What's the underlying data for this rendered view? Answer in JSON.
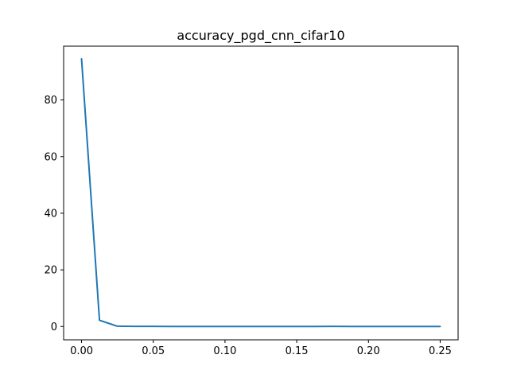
{
  "chart_data": {
    "type": "line",
    "title": "accuracy_pgd_cnn_cifar10",
    "xlabel": "",
    "ylabel": "",
    "xlim": [
      -0.0125,
      0.2625
    ],
    "ylim": [
      -4.7,
      99.0
    ],
    "grid": false,
    "x_ticks": [
      0.0,
      0.05,
      0.1,
      0.15,
      0.2,
      0.25
    ],
    "x_tick_labels": [
      "0.00",
      "0.05",
      "0.10",
      "0.15",
      "0.20",
      "0.25"
    ],
    "y_ticks": [
      0,
      20,
      40,
      60,
      80
    ],
    "y_tick_labels": [
      "0",
      "20",
      "40",
      "60",
      "80"
    ],
    "series": [
      {
        "color": "#1f77b4",
        "x": [
          0.0,
          0.0125,
          0.025,
          0.0375,
          0.05,
          0.0625,
          0.075,
          0.0875,
          0.1,
          0.1125,
          0.125,
          0.1375,
          0.15,
          0.1625,
          0.175,
          0.1875,
          0.2,
          0.2125,
          0.225,
          0.2375,
          0.25
        ],
        "y": [
          94.5,
          2.2,
          0.1,
          0.05,
          0.03,
          0.02,
          0.02,
          0.02,
          0.02,
          0.02,
          0.02,
          0.02,
          0.02,
          0.02,
          0.03,
          0.02,
          0.02,
          0.02,
          0.02,
          0.02,
          0.02
        ]
      }
    ]
  }
}
